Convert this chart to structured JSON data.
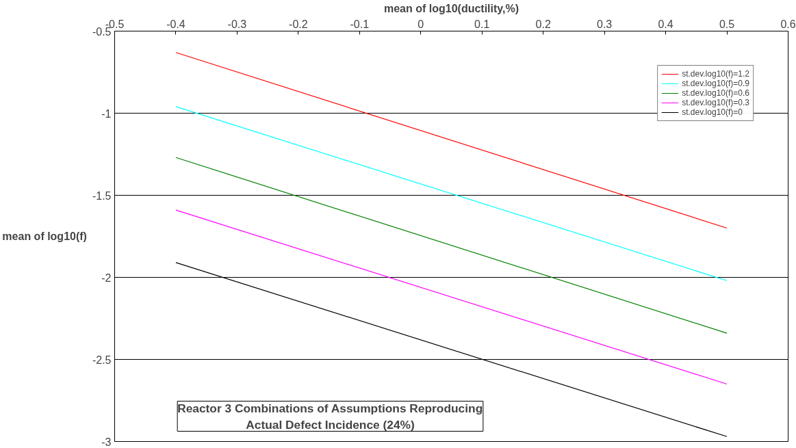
{
  "chart_data": {
    "type": "line",
    "xlabel": "mean of log10(ductility,%)",
    "ylabel": "mean of log10(f)",
    "x": [
      -0.4,
      0.5
    ],
    "series": [
      {
        "name": "st.dev.log10(f)=1.2",
        "color": "#ff0000",
        "values": [
          -0.63,
          -1.7
        ]
      },
      {
        "name": "st.dev.log10(f)=0.9",
        "color": "#00ffff",
        "values": [
          -0.96,
          -2.02
        ]
      },
      {
        "name": "st.dev.log10(f)=0.6",
        "color": "#008000",
        "values": [
          -1.27,
          -2.34
        ]
      },
      {
        "name": "st.dev.log10(f)=0.3",
        "color": "#ff00ff",
        "values": [
          -1.59,
          -2.65
        ]
      },
      {
        "name": "st.dev.log10(f)=0",
        "color": "#000000",
        "values": [
          -1.91,
          -2.97
        ]
      }
    ],
    "xlim": [
      -0.5,
      0.6
    ],
    "xticks": [
      -0.5,
      -0.4,
      -0.3,
      -0.2,
      -0.1,
      0,
      0.1,
      0.2,
      0.3,
      0.4,
      0.5,
      0.6
    ],
    "ylim": [
      -3,
      -0.5
    ],
    "yticks": [
      -3,
      -2.5,
      -2,
      -1.5,
      -1,
      -0.5
    ],
    "grid": "y",
    "legend": "top right",
    "marker": "none",
    "line_style": "solid",
    "annotations": [
      "Reactor 3 Combinations of Assumptions Reproducing\nActual Defect Incidence (24%)"
    ]
  }
}
